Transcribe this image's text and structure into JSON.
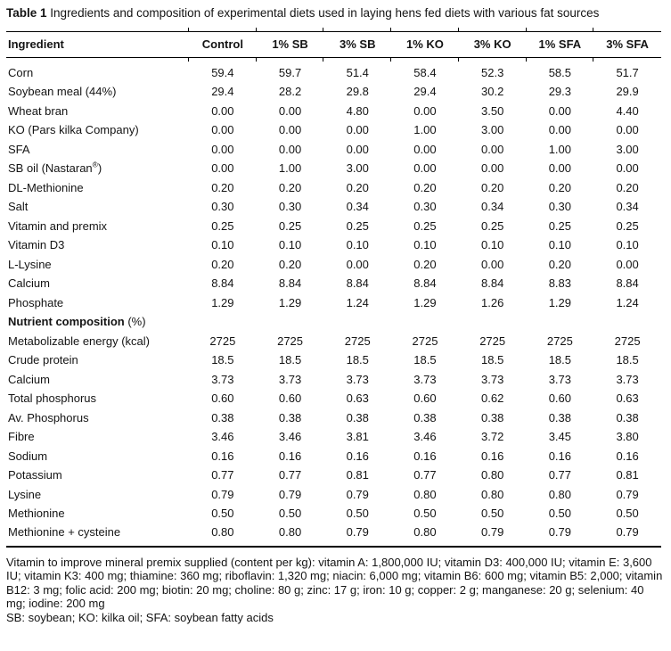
{
  "caption": {
    "label": "Table 1",
    "text": "Ingredients and composition of experimental diets used in laying hens fed diets with various fat sources"
  },
  "table": {
    "columns": [
      "Ingredient",
      "Control",
      "1% SB",
      "3% SB",
      "1% KO",
      "3% KO",
      "1% SFA",
      "3% SFA"
    ],
    "sections": [
      {
        "rows": [
          {
            "label": "Corn",
            "values": [
              "59.4",
              "59.7",
              "51.4",
              "58.4",
              "52.3",
              "58.5",
              "51.7"
            ]
          },
          {
            "label": "Soybean meal (44%)",
            "values": [
              "29.4",
              "28.2",
              "29.8",
              "29.4",
              "30.2",
              "29.3",
              "29.9"
            ]
          },
          {
            "label": "Wheat bran",
            "values": [
              "0.00",
              "0.00",
              "4.80",
              "0.00",
              "3.50",
              "0.00",
              "4.40"
            ]
          },
          {
            "label": "KO (Pars kilka Company)",
            "values": [
              "0.00",
              "0.00",
              "0.00",
              "1.00",
              "3.00",
              "0.00",
              "0.00"
            ]
          },
          {
            "label": "SFA",
            "values": [
              "0.00",
              "0.00",
              "0.00",
              "0.00",
              "0.00",
              "1.00",
              "3.00"
            ]
          },
          {
            "label": "SB oil (Nastaran®)",
            "values": [
              "0.00",
              "1.00",
              "3.00",
              "0.00",
              "0.00",
              "0.00",
              "0.00"
            ]
          },
          {
            "label": "DL-Methionine",
            "values": [
              "0.20",
              "0.20",
              "0.20",
              "0.20",
              "0.20",
              "0.20",
              "0.20"
            ]
          },
          {
            "label": "Salt",
            "values": [
              "0.30",
              "0.30",
              "0.34",
              "0.30",
              "0.34",
              "0.30",
              "0.34"
            ]
          },
          {
            "label": "Vitamin and premix",
            "values": [
              "0.25",
              "0.25",
              "0.25",
              "0.25",
              "0.25",
              "0.25",
              "0.25"
            ]
          },
          {
            "label": "Vitamin D3",
            "values": [
              "0.10",
              "0.10",
              "0.10",
              "0.10",
              "0.10",
              "0.10",
              "0.10"
            ]
          },
          {
            "label": "L-Lysine",
            "values": [
              "0.20",
              "0.20",
              "0.00",
              "0.20",
              "0.00",
              "0.20",
              "0.00"
            ]
          },
          {
            "label": "Calcium",
            "values": [
              "8.84",
              "8.84",
              "8.84",
              "8.84",
              "8.84",
              "8.83",
              "8.84"
            ]
          },
          {
            "label": "Phosphate",
            "values": [
              "1.29",
              "1.29",
              "1.24",
              "1.29",
              "1.26",
              "1.29",
              "1.24"
            ]
          }
        ]
      },
      {
        "header": {
          "bold": "Nutrient composition",
          "regular": "(%)"
        },
        "rows": [
          {
            "label": "Metabolizable energy (kcal)",
            "values": [
              "2725",
              "2725",
              "2725",
              "2725",
              "2725",
              "2725",
              "2725"
            ]
          },
          {
            "label": "Crude protein",
            "values": [
              "18.5",
              "18.5",
              "18.5",
              "18.5",
              "18.5",
              "18.5",
              "18.5"
            ]
          },
          {
            "label": "Calcium",
            "values": [
              "3.73",
              "3.73",
              "3.73",
              "3.73",
              "3.73",
              "3.73",
              "3.73"
            ]
          },
          {
            "label": "Total phosphorus",
            "values": [
              "0.60",
              "0.60",
              "0.63",
              "0.60",
              "0.62",
              "0.60",
              "0.63"
            ]
          },
          {
            "label": "Av. Phosphorus",
            "values": [
              "0.38",
              "0.38",
              "0.38",
              "0.38",
              "0.38",
              "0.38",
              "0.38"
            ]
          },
          {
            "label": "Fibre",
            "values": [
              "3.46",
              "3.46",
              "3.81",
              "3.46",
              "3.72",
              "3.45",
              "3.80"
            ]
          },
          {
            "label": "Sodium",
            "values": [
              "0.16",
              "0.16",
              "0.16",
              "0.16",
              "0.16",
              "0.16",
              "0.16"
            ]
          },
          {
            "label": "Potassium",
            "values": [
              "0.77",
              "0.77",
              "0.81",
              "0.77",
              "0.80",
              "0.77",
              "0.81"
            ]
          },
          {
            "label": "Lysine",
            "values": [
              "0.79",
              "0.79",
              "0.79",
              "0.80",
              "0.80",
              "0.80",
              "0.79"
            ]
          },
          {
            "label": "Methionine",
            "values": [
              "0.50",
              "0.50",
              "0.50",
              "0.50",
              "0.50",
              "0.50",
              "0.50"
            ]
          },
          {
            "label": "Methionine + cysteine",
            "values": [
              "0.80",
              "0.80",
              "0.79",
              "0.80",
              "0.79",
              "0.79",
              "0.79"
            ]
          }
        ]
      }
    ]
  },
  "footnotes": [
    "Vitamin to improve mineral premix supplied (content per kg): vitamin A: 1,800,000 IU; vitamin D3: 400,000 IU; vitamin E: 3,600 IU; vitamin K3: 400 mg; thiamine: 360 mg; riboflavin: 1,320 mg; niacin: 6,000 mg; vitamin B6: 600 mg; vitamin B5: 2,000; vitamin B12: 3 mg; folic acid: 200 mg; biotin: 20 mg; choline: 80 g; zinc: 17 g; iron: 10 g; copper: 2 g; manganese: 20 g; selenium: 40 mg; iodine: 200 mg",
    "SB: soybean; KO: kilka oil; SFA: soybean fatty acids"
  ]
}
